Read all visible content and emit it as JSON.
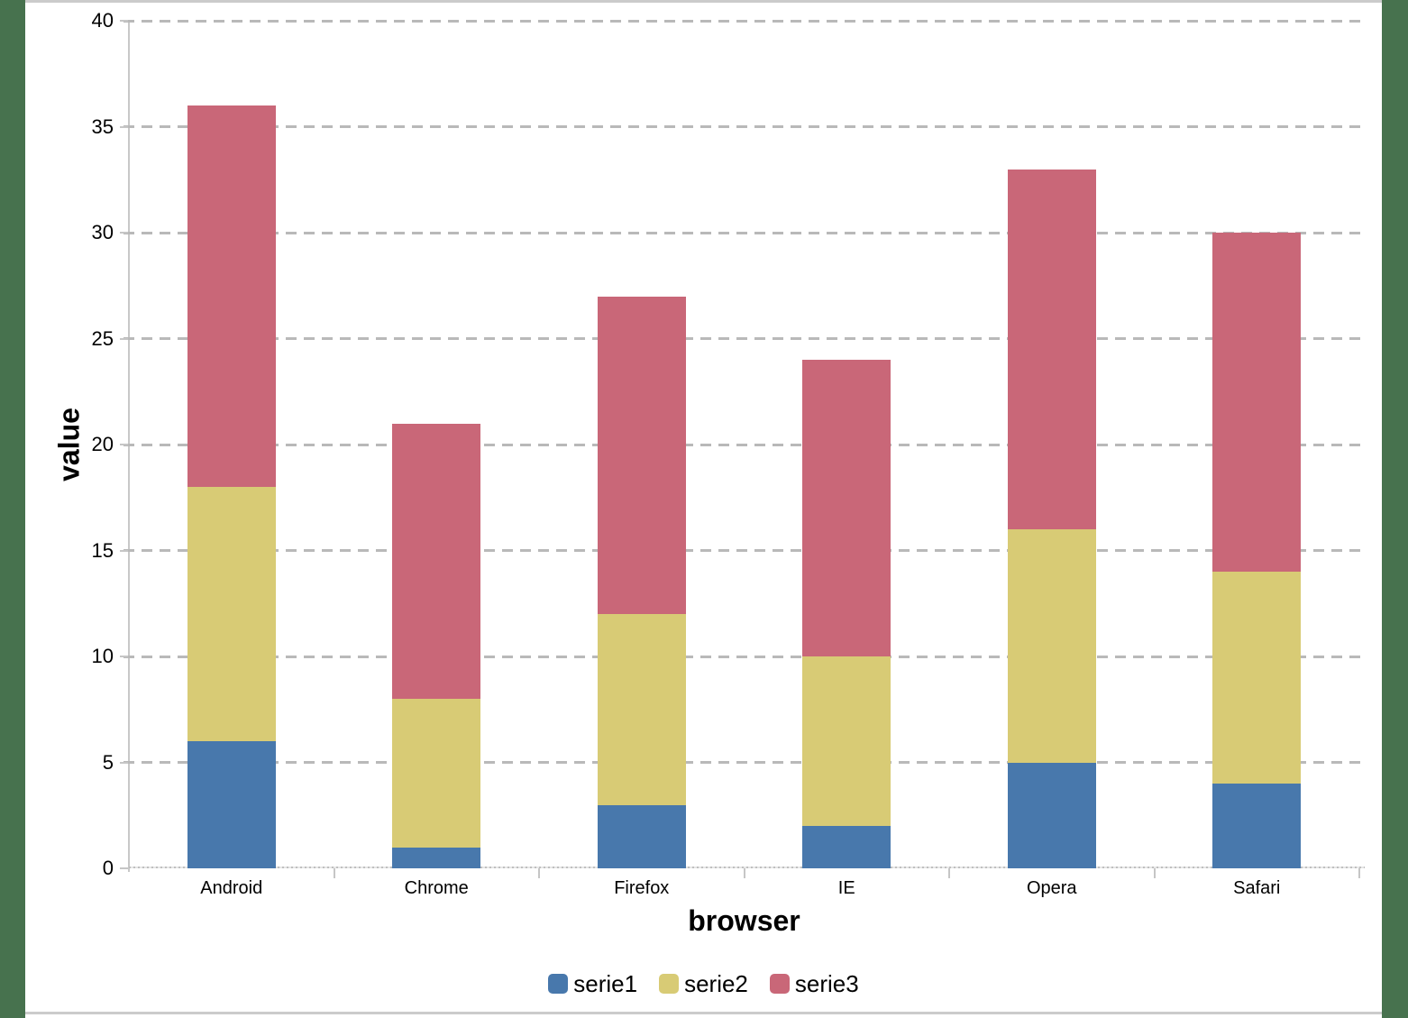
{
  "frame": {
    "background_color": "#47724E",
    "canvas_color": "#ffffff",
    "border_color": "#cbcbcb",
    "gridline_color": "#b9b9b9",
    "axis_color": "#c6c6c6",
    "text_color": "#000000"
  },
  "chart_data": {
    "type": "bar",
    "stacked": true,
    "title": "",
    "xlabel": "browser",
    "ylabel": "value",
    "categories": [
      "Android",
      "Chrome",
      "Firefox",
      "IE",
      "Opera",
      "Safari"
    ],
    "series": [
      {
        "name": "serie1",
        "color": "#4878AC",
        "values": [
          6,
          1,
          3,
          2,
          5,
          4
        ]
      },
      {
        "name": "serie2",
        "color": "#D8CB75",
        "values": [
          12,
          7,
          9,
          8,
          11,
          10
        ]
      },
      {
        "name": "serie3",
        "color": "#C96778",
        "values": [
          18,
          13,
          15,
          14,
          17,
          16
        ]
      }
    ],
    "stack_totals": [
      36,
      21,
      27,
      24,
      33,
      30
    ],
    "ylim": [
      0,
      40
    ],
    "yticks": [
      "0",
      "5",
      "10",
      "15",
      "20",
      "25",
      "30",
      "35",
      "40"
    ],
    "grid": "horizontal-dashed",
    "legend_position": "bottom"
  }
}
